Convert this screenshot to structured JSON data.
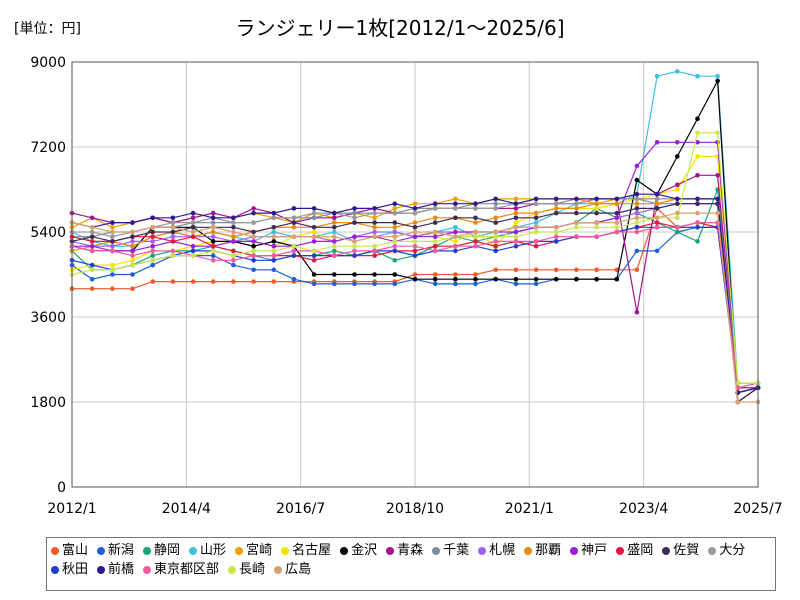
{
  "unit_label": "[単位：円]",
  "chart_data": {
    "type": "line",
    "title": "ランジェリー1枚[2012/1～2025/6]",
    "xlabel": "",
    "ylabel": "円",
    "x_start": 2012.0,
    "x_end": 2025.5,
    "xlim": [
      2012.0,
      2025.5
    ],
    "ylim": [
      0,
      9000
    ],
    "yticks": [
      0,
      1800,
      3600,
      5400,
      7200,
      9000
    ],
    "xticks": [
      {
        "label": "2012/1",
        "x": 2012.0
      },
      {
        "label": "2014/4",
        "x": 2014.25
      },
      {
        "label": "2016/7",
        "x": 2016.5
      },
      {
        "label": "2018/10",
        "x": 2018.75
      },
      {
        "label": "2021/1",
        "x": 2021.0
      },
      {
        "label": "2023/4",
        "x": 2023.25
      },
      {
        "label": "2025/7",
        "x": 2025.5
      }
    ],
    "grid": true,
    "legend_position": "bottom",
    "series": [
      {
        "name": "富山",
        "color": "#f05a28",
        "values": [
          4200,
          4200,
          4200,
          4200,
          4350,
          4350,
          4350,
          4350,
          4350,
          4350,
          4350,
          4350,
          4350,
          4350,
          4350,
          4350,
          4350,
          4500,
          4500,
          4500,
          4500,
          4600,
          4600,
          4600,
          4600,
          4600,
          4600,
          4600,
          4600,
          5900,
          5500,
          5500,
          5500,
          2200,
          2200
        ]
      },
      {
        "name": "新潟",
        "color": "#1f5fd6",
        "values": [
          4700,
          4400,
          4500,
          4500,
          4700,
          4900,
          4900,
          4900,
          4700,
          4600,
          4600,
          4400,
          4300,
          4300,
          4300,
          4300,
          4300,
          4400,
          4300,
          4300,
          4300,
          4400,
          4300,
          4300,
          4400,
          4400,
          4400,
          4400,
          5000,
          5000,
          5400,
          5500,
          5500,
          2100,
          2100
        ]
      },
      {
        "name": "静岡",
        "color": "#1aa37a",
        "values": [
          5000,
          4600,
          4600,
          4700,
          4900,
          5000,
          5000,
          5100,
          5000,
          4900,
          4800,
          4900,
          4900,
          5000,
          4900,
          5000,
          4800,
          4900,
          5100,
          5300,
          5200,
          5300,
          5400,
          5500,
          5500,
          5600,
          5900,
          5700,
          5800,
          5600,
          5400,
          5200,
          6300,
          2000,
          2100
        ]
      },
      {
        "name": "山形",
        "color": "#3fbfe3",
        "values": [
          5400,
          5200,
          5100,
          5100,
          5300,
          5400,
          5300,
          5400,
          5300,
          5200,
          5400,
          5300,
          5300,
          5400,
          5200,
          5300,
          5400,
          5300,
          5400,
          5500,
          5300,
          5400,
          5500,
          5600,
          5800,
          6000,
          6000,
          6000,
          6200,
          8700,
          8800,
          8700,
          8700,
          2200,
          2200
        ]
      },
      {
        "name": "宮崎",
        "color": "#f0a000",
        "values": [
          5500,
          5700,
          5500,
          5600,
          5700,
          5600,
          5700,
          5800,
          5700,
          5800,
          5700,
          5600,
          5800,
          5700,
          5800,
          5700,
          5900,
          6000,
          6000,
          6100,
          6000,
          6100,
          6100,
          6100,
          6100,
          6100,
          6000,
          6100,
          6100,
          6100,
          6100,
          6100,
          6100,
          2200,
          2200
        ]
      },
      {
        "name": "名古屋",
        "color": "#f5e400",
        "values": [
          4600,
          4700,
          4700,
          4800,
          5000,
          5000,
          5100,
          5200,
          5200,
          5200,
          5100,
          5300,
          5400,
          5200,
          5300,
          5300,
          5300,
          5400,
          5300,
          5200,
          5400,
          5100,
          5600,
          5800,
          5900,
          5900,
          5900,
          6000,
          6100,
          6200,
          6300,
          7000,
          7000,
          2200,
          2200
        ]
      },
      {
        "name": "金沢",
        "color": "#000000",
        "values": [
          5100,
          5000,
          5000,
          5000,
          5500,
          5500,
          5500,
          5200,
          5200,
          5100,
          5200,
          5100,
          4500,
          4500,
          4500,
          4500,
          4500,
          4400,
          4400,
          4400,
          4400,
          4400,
          4400,
          4400,
          4400,
          4400,
          4400,
          4400,
          6500,
          6200,
          7000,
          7800,
          8600,
          1800,
          2100
        ]
      },
      {
        "name": "青森",
        "color": "#a3138c",
        "values": [
          5800,
          5700,
          5600,
          5600,
          5700,
          5600,
          5700,
          5800,
          5700,
          5900,
          5800,
          5600,
          5700,
          5700,
          5800,
          5900,
          5800,
          5800,
          5900,
          5900,
          5900,
          5900,
          5900,
          6000,
          6000,
          6000,
          6100,
          6100,
          3700,
          6200,
          6400,
          6600,
          6600,
          2000,
          2100
        ]
      },
      {
        "name": "千葉",
        "color": "#7c8fa0",
        "values": [
          5300,
          5300,
          5400,
          5400,
          5500,
          5500,
          5600,
          5600,
          5600,
          5600,
          5700,
          5700,
          5700,
          5800,
          5800,
          5800,
          5800,
          5900,
          5900,
          5900,
          6000,
          6000,
          6000,
          6000,
          6000,
          6100,
          6100,
          6100,
          6100,
          6000,
          6000,
          6000,
          6000,
          2100,
          2200
        ]
      },
      {
        "name": "札幌",
        "color": "#a05ff0",
        "values": [
          5200,
          5100,
          5100,
          5200,
          5200,
          5300,
          5300,
          5300,
          5200,
          5300,
          5300,
          5300,
          5300,
          5200,
          5300,
          5400,
          5400,
          5300,
          5400,
          5400,
          5400,
          5400,
          5500,
          5500,
          5500,
          5600,
          5600,
          5700,
          5800,
          5900,
          6000,
          6000,
          6000,
          2100,
          2100
        ]
      },
      {
        "name": "那覇",
        "color": "#e88a10",
        "values": [
          5000,
          5100,
          5200,
          5100,
          5300,
          5400,
          5300,
          5400,
          5300,
          5400,
          5500,
          5500,
          5500,
          5600,
          5600,
          5500,
          5500,
          5600,
          5700,
          5700,
          5600,
          5700,
          5800,
          5800,
          5900,
          5900,
          6000,
          6000,
          6000,
          6000,
          6100,
          6100,
          6100,
          2200,
          2200
        ]
      },
      {
        "name": "神戸",
        "color": "#9a1fd6",
        "values": [
          5100,
          5100,
          5000,
          5000,
          5100,
          5200,
          5100,
          5100,
          5200,
          5200,
          5100,
          5100,
          5200,
          5200,
          5300,
          5300,
          5200,
          5300,
          5300,
          5400,
          5400,
          5400,
          5400,
          5500,
          5500,
          5600,
          5600,
          5700,
          6800,
          7300,
          7300,
          7300,
          7300,
          2000,
          2100
        ]
      },
      {
        "name": "盛岡",
        "color": "#e3173c",
        "values": [
          5300,
          5200,
          5200,
          5300,
          5300,
          5200,
          5300,
          5100,
          5000,
          4900,
          4900,
          4900,
          4800,
          4900,
          4900,
          4900,
          5000,
          5000,
          5100,
          5100,
          5200,
          5100,
          5200,
          5100,
          5200,
          5300,
          5300,
          5400,
          5500,
          5600,
          5500,
          5600,
          5500,
          2100,
          2100
        ]
      },
      {
        "name": "佐賀",
        "color": "#3d2a55",
        "values": [
          5200,
          5300,
          5200,
          5300,
          5400,
          5400,
          5500,
          5500,
          5500,
          5400,
          5500,
          5600,
          5500,
          5500,
          5600,
          5600,
          5600,
          5500,
          5600,
          5700,
          5700,
          5600,
          5700,
          5700,
          5800,
          5800,
          5800,
          5800,
          5900,
          5900,
          6000,
          6000,
          6000,
          1800,
          2100
        ]
      },
      {
        "name": "大分",
        "color": "#999999",
        "values": [
          5400,
          5400,
          5300,
          5400,
          5500,
          5600,
          5600,
          5700,
          5600,
          5600,
          5700,
          5700,
          5800,
          5800,
          5700,
          5800,
          5800,
          5800,
          5900,
          5900,
          5900,
          5900,
          6000,
          6000,
          6000,
          6000,
          6100,
          6100,
          6100,
          6100,
          6100,
          6100,
          6100,
          2200,
          2200
        ]
      },
      {
        "name": "秋田",
        "color": "#1e3fcf",
        "values": [
          4800,
          4700,
          4600,
          4700,
          4800,
          4900,
          5000,
          5000,
          4900,
          4800,
          4800,
          4900,
          4900,
          4900,
          4900,
          5000,
          5000,
          4900,
          5000,
          5000,
          5100,
          5000,
          5100,
          5200,
          5200,
          5300,
          5300,
          5400,
          5500,
          5500,
          5500,
          5500,
          5500,
          2000,
          2100
        ]
      },
      {
        "name": "前橋",
        "color": "#2c1a90",
        "values": [
          5600,
          5500,
          5600,
          5600,
          5700,
          5700,
          5800,
          5700,
          5700,
          5800,
          5800,
          5900,
          5900,
          5800,
          5900,
          5900,
          6000,
          5900,
          6000,
          6000,
          6000,
          6100,
          6000,
          6100,
          6100,
          6100,
          6100,
          6100,
          6200,
          6200,
          6100,
          6100,
          6100,
          2000,
          2100
        ]
      },
      {
        "name": "東京都区部",
        "color": "#f05aa0",
        "values": [
          5100,
          5000,
          5000,
          4900,
          5000,
          5000,
          4900,
          4800,
          4800,
          4900,
          4900,
          5000,
          5000,
          4900,
          5000,
          5000,
          5100,
          5100,
          5000,
          5100,
          5100,
          5200,
          5200,
          5200,
          5300,
          5300,
          5300,
          5400,
          5400,
          5500,
          5500,
          5600,
          5600,
          2100,
          2200
        ]
      },
      {
        "name": "長崎",
        "color": "#c8e84a",
        "values": [
          4500,
          4600,
          4600,
          4700,
          4800,
          4900,
          4900,
          5000,
          4900,
          5000,
          5000,
          5100,
          5000,
          5100,
          5100,
          5100,
          5200,
          5200,
          5200,
          5300,
          5300,
          5300,
          5300,
          5400,
          5400,
          5500,
          5500,
          5500,
          5600,
          5700,
          5700,
          7500,
          7500,
          2200,
          2200
        ]
      },
      {
        "name": "広島",
        "color": "#d9a070",
        "values": [
          5600,
          5500,
          5400,
          5400,
          5500,
          5500,
          5400,
          5500,
          5400,
          5300,
          5300,
          5300,
          5300,
          5300,
          5200,
          5300,
          5300,
          5400,
          5400,
          5300,
          5400,
          5400,
          5500,
          5500,
          5500,
          5600,
          5600,
          5600,
          5700,
          5700,
          5800,
          5800,
          5800,
          1800,
          1800
        ]
      }
    ]
  }
}
